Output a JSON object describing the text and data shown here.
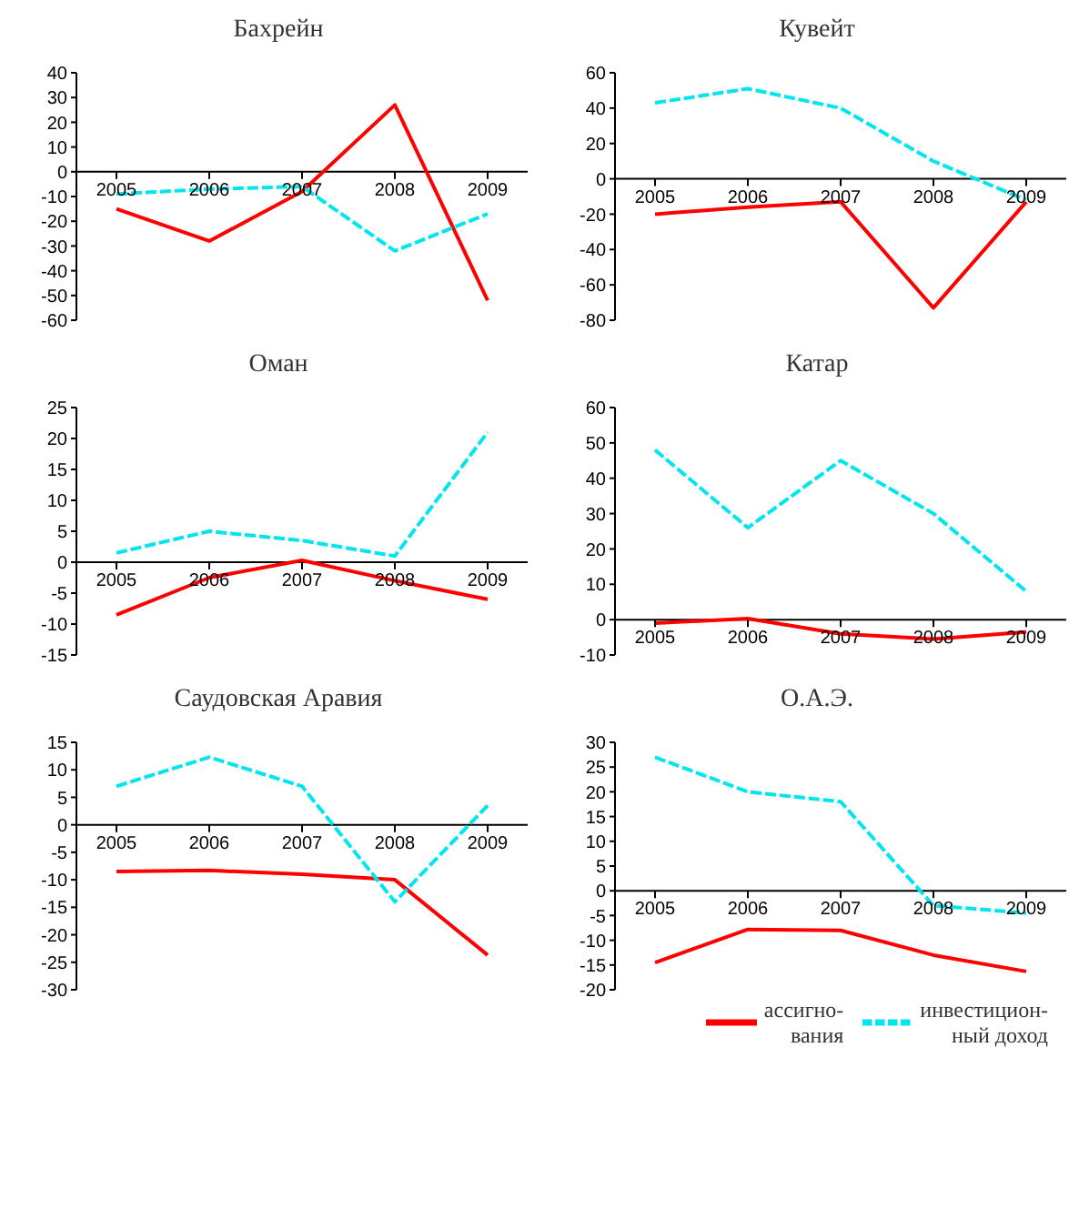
{
  "chart_data": [
    {
      "type": "line",
      "title": "Бахрейн",
      "categories": [
        "2005",
        "2006",
        "2007",
        "2008",
        "2009"
      ],
      "ylim": [
        -60,
        40
      ],
      "yticks": [
        -60,
        -50,
        -40,
        -30,
        -20,
        -10,
        0,
        10,
        20,
        30,
        40
      ],
      "grid": false,
      "legend": false,
      "marker": "none",
      "series": [
        {
          "color": "#ff0000",
          "line_style": "solid",
          "values": [
            -15,
            -28,
            -8,
            27,
            -52
          ]
        },
        {
          "color": "#00e5ee",
          "line_style": "dashed",
          "values": [
            -9,
            -7,
            -6,
            -32,
            -17
          ]
        }
      ]
    },
    {
      "type": "line",
      "title": "Кувейт",
      "categories": [
        "2005",
        "2006",
        "2007",
        "2008",
        "2009"
      ],
      "ylim": [
        -80,
        60
      ],
      "yticks": [
        -80,
        -60,
        -40,
        -20,
        0,
        20,
        40,
        60
      ],
      "grid": false,
      "legend": false,
      "marker": "none",
      "series": [
        {
          "color": "#ff0000",
          "line_style": "solid",
          "values": [
            -20,
            -16,
            -13,
            -73,
            -13
          ]
        },
        {
          "color": "#00e5ee",
          "line_style": "dashed",
          "values": [
            43,
            51,
            40,
            10,
            -12
          ]
        }
      ]
    },
    {
      "type": "line",
      "title": "Оман",
      "categories": [
        "2005",
        "2006",
        "2007",
        "2008",
        "2009"
      ],
      "ylim": [
        -15,
        25
      ],
      "yticks": [
        -15,
        -10,
        -5,
        0,
        5,
        10,
        15,
        20,
        25
      ],
      "grid": false,
      "legend": false,
      "marker": "none",
      "series": [
        {
          "color": "#ff0000",
          "line_style": "solid",
          "values": [
            -8.5,
            -2.5,
            0.3,
            -3,
            -6
          ]
        },
        {
          "color": "#00e5ee",
          "line_style": "dashed",
          "values": [
            1.5,
            5,
            3.5,
            1,
            21
          ]
        }
      ]
    },
    {
      "type": "line",
      "title": "Катар",
      "categories": [
        "2005",
        "2006",
        "2007",
        "2008",
        "2009"
      ],
      "ylim": [
        -10,
        60
      ],
      "yticks": [
        -10,
        0,
        10,
        20,
        30,
        40,
        50,
        60
      ],
      "grid": false,
      "legend": false,
      "marker": "none",
      "series": [
        {
          "color": "#ff0000",
          "line_style": "solid",
          "values": [
            -1,
            0.3,
            -4,
            -5.5,
            -3.5
          ]
        },
        {
          "color": "#00e5ee",
          "line_style": "dashed",
          "values": [
            48,
            26,
            45,
            30,
            8
          ]
        }
      ]
    },
    {
      "type": "line",
      "title": "Саудовская Аравия",
      "categories": [
        "2005",
        "2006",
        "2007",
        "2008",
        "2009"
      ],
      "ylim": [
        -30,
        15
      ],
      "yticks": [
        -30,
        -25,
        -20,
        -15,
        -10,
        -5,
        0,
        5,
        10,
        15
      ],
      "grid": false,
      "legend": false,
      "marker": "none",
      "series": [
        {
          "color": "#ff0000",
          "line_style": "solid",
          "values": [
            -8.5,
            -8.3,
            -9,
            -10,
            -23.7
          ]
        },
        {
          "color": "#00e5ee",
          "line_style": "dashed",
          "values": [
            7,
            12.3,
            7,
            -14,
            3.5
          ]
        }
      ]
    },
    {
      "type": "line",
      "title": "О.А.Э.",
      "categories": [
        "2005",
        "2006",
        "2007",
        "2008",
        "2009"
      ],
      "ylim": [
        -20,
        30
      ],
      "yticks": [
        -20,
        -15,
        -10,
        -5,
        0,
        5,
        10,
        15,
        20,
        25,
        30
      ],
      "grid": false,
      "legend": "bottom right",
      "marker": "none",
      "series": [
        {
          "name": "ассигно-вания",
          "color": "#ff0000",
          "line_style": "solid",
          "values": [
            -14.5,
            -7.8,
            -8,
            -13,
            -16.3
          ]
        },
        {
          "name": "инвестицион-ный доход",
          "color": "#00e5ee",
          "line_style": "dashed",
          "values": [
            27,
            20,
            18,
            -3,
            -4.5
          ]
        }
      ]
    }
  ]
}
